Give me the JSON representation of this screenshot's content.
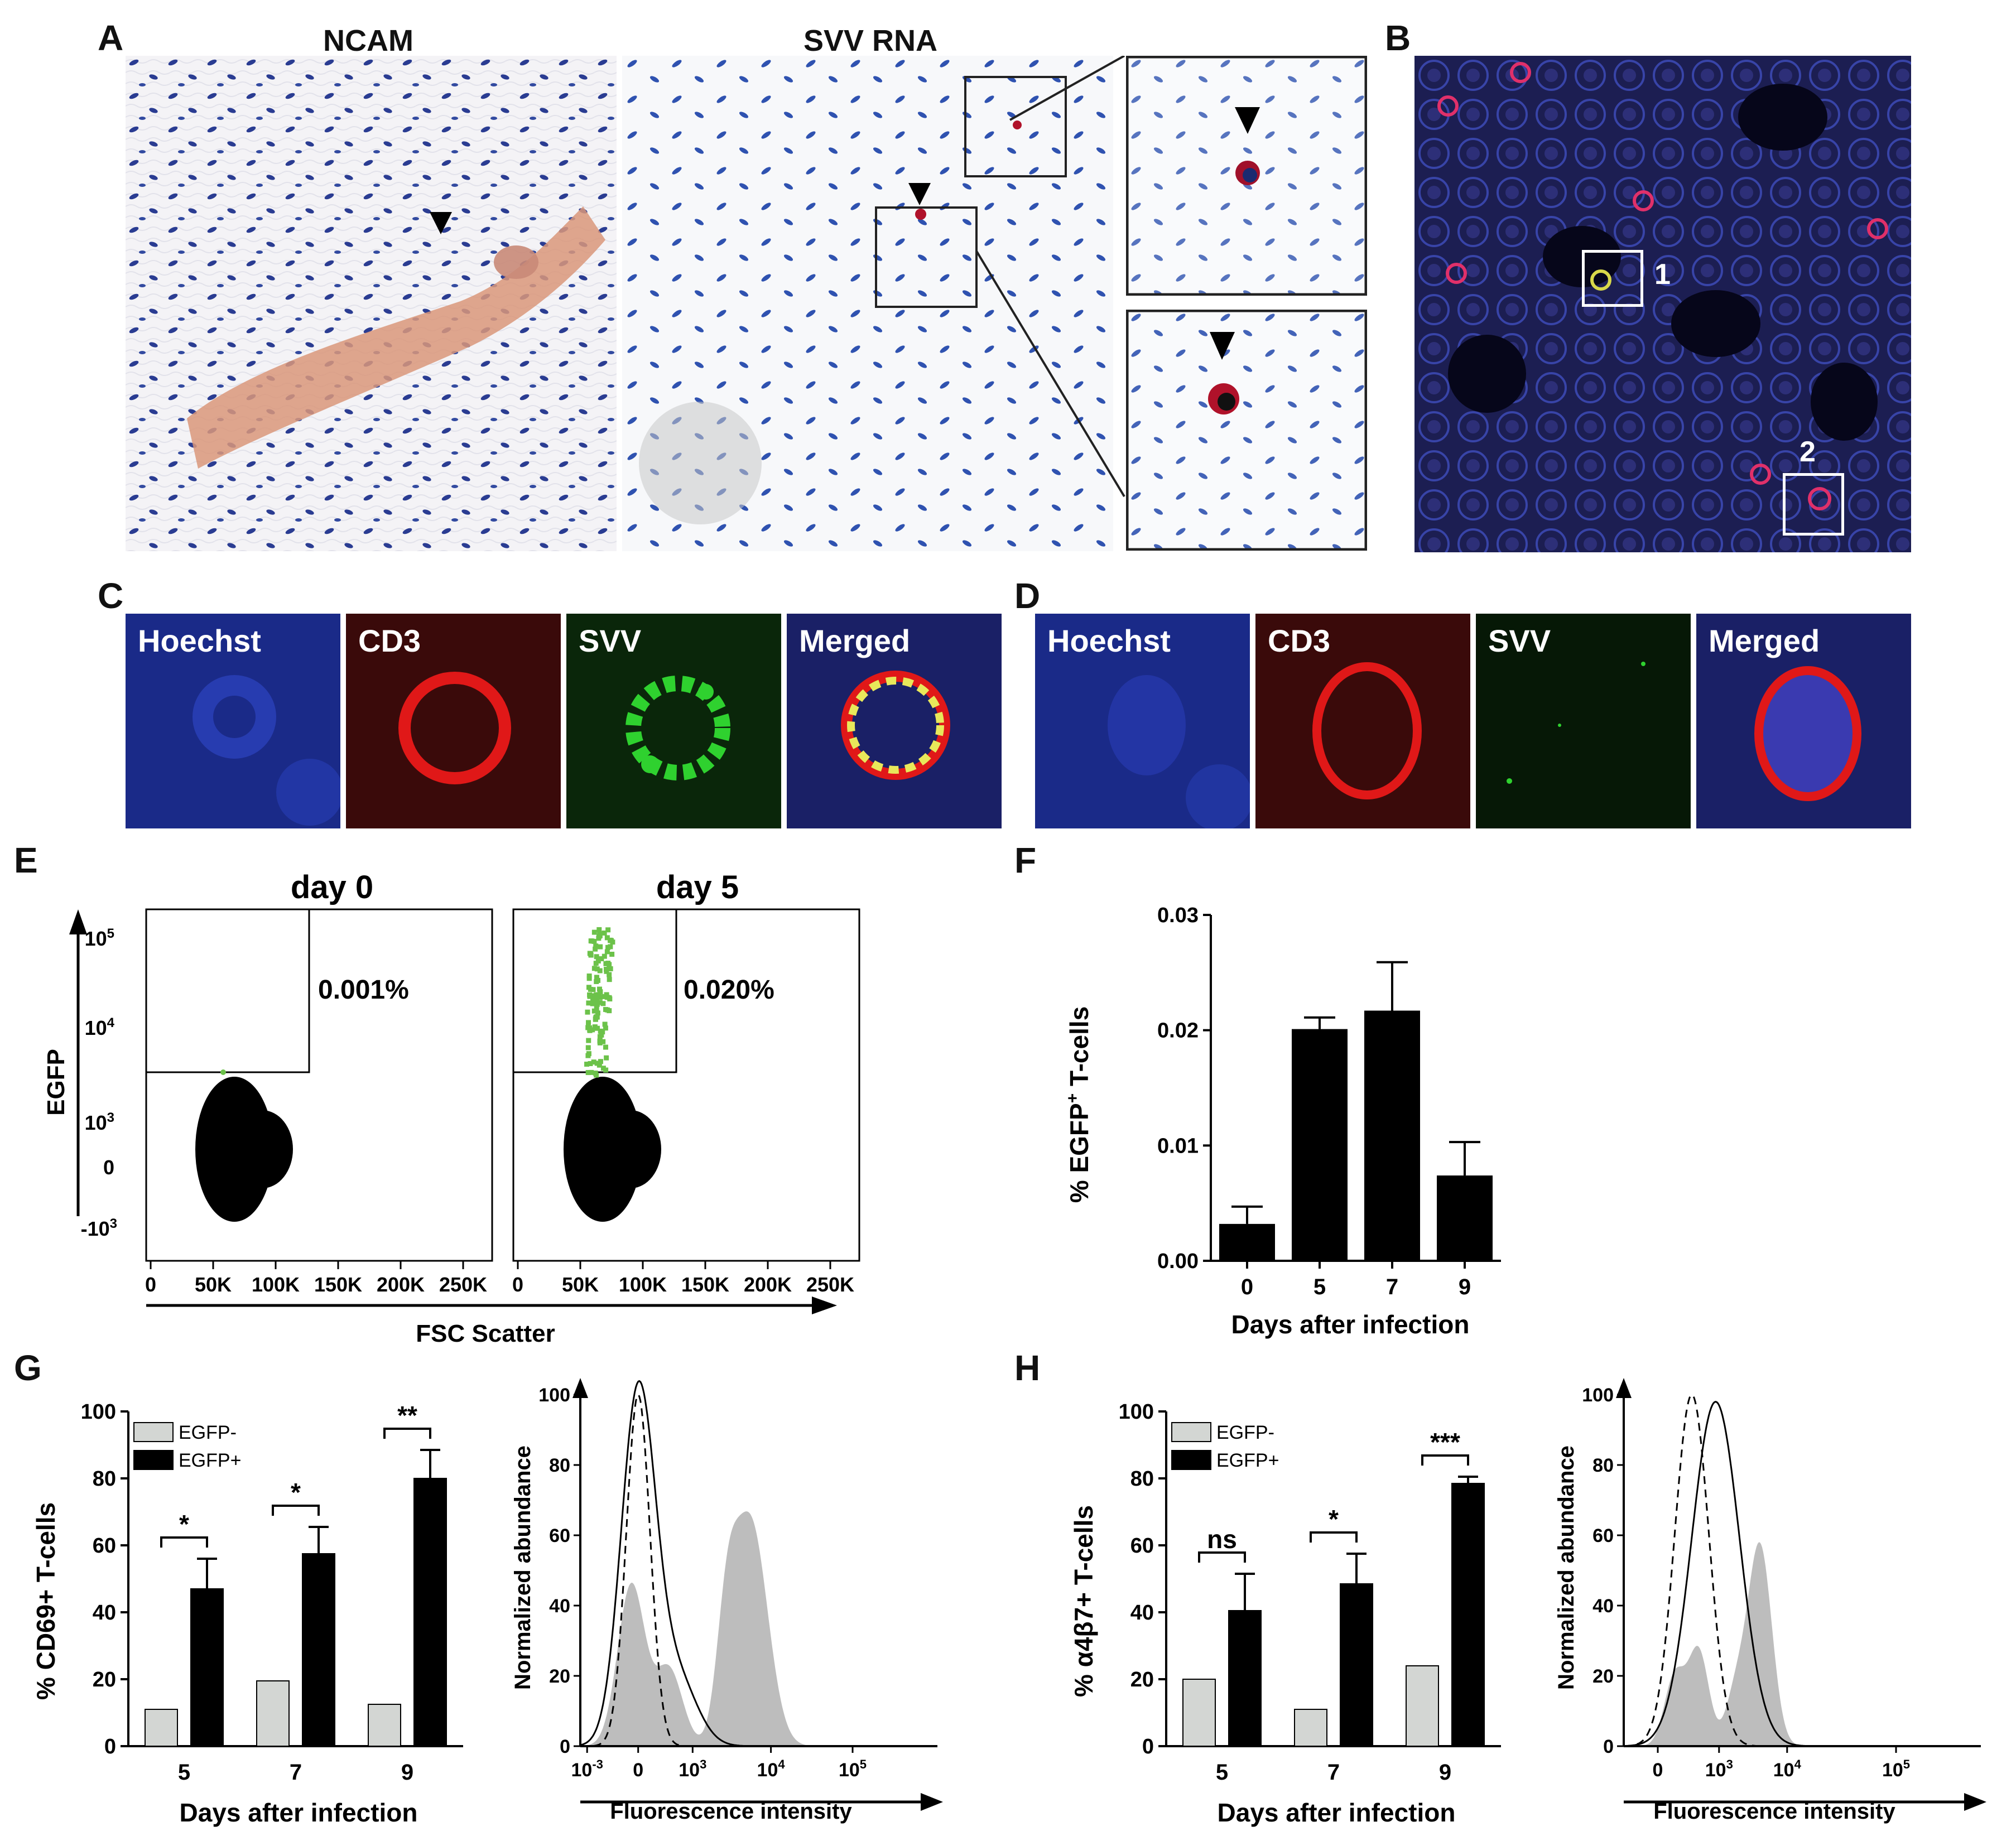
{
  "panels": {
    "A": {
      "letter": "A",
      "title_left": "NCAM",
      "title_right": "SVV RNA"
    },
    "B": {
      "letter": "B",
      "box_labels": [
        "1",
        "2"
      ]
    },
    "C": {
      "letter": "C",
      "tiles": [
        "Hoechst",
        "CD3",
        "SVV",
        "Merged"
      ]
    },
    "D": {
      "letter": "D",
      "tiles": [
        "Hoechst",
        "CD3",
        "SVV",
        "Merged"
      ]
    },
    "E": {
      "letter": "E"
    },
    "F": {
      "letter": "F"
    },
    "G": {
      "letter": "G"
    },
    "H": {
      "letter": "H"
    }
  },
  "colors": {
    "bar_negative": "#d3d6d3",
    "bar_positive": "#000000",
    "egfp_dots": "#6cc24a",
    "histogram_fill": "#bdbdbd",
    "ncam_stain": "#d9977a",
    "nuclei": "#2a3c92",
    "hoechst": "#2433a8",
    "cd3": "#e01818",
    "svv": "#2fd12f"
  },
  "chart_data": [
    {
      "id": "E-day0",
      "type": "scatter",
      "title": "day 0",
      "xlabel": "FSC Scatter",
      "ylabel": "EGFP",
      "x_ticks": [
        "0",
        "50K",
        "100K",
        "150K",
        "200K",
        "250K"
      ],
      "y_ticks": [
        "10^5",
        "10^4",
        "10^3",
        "0",
        "-10^3"
      ],
      "gate_percent": "0.001%"
    },
    {
      "id": "E-day5",
      "type": "scatter",
      "title": "day 5",
      "x_ticks": [
        "0",
        "50K",
        "100K",
        "150K",
        "200K",
        "250K"
      ],
      "gate_percent": "0.020%"
    },
    {
      "id": "F",
      "type": "bar",
      "categories": [
        "0",
        "5",
        "7",
        "9"
      ],
      "values": [
        0.0032,
        0.0201,
        0.0217,
        0.0074
      ],
      "errors": [
        0.0015,
        0.001,
        0.0042,
        0.0029
      ],
      "xlabel": "Days after infection",
      "ylabel_main": "% EGFP",
      "ylabel_sup": "+",
      "ylabel_rest": " T-cells",
      "ylim": [
        0,
        0.03
      ],
      "y_ticks": [
        "0.00",
        "0.01",
        "0.02",
        "0.03"
      ]
    },
    {
      "id": "G-bar",
      "type": "bar",
      "categories": [
        "5",
        "7",
        "9"
      ],
      "series": [
        {
          "name": "EGFP-",
          "values": [
            11,
            19.5,
            12.5
          ],
          "errors": [
            0,
            0,
            0
          ]
        },
        {
          "name": "EGFP+",
          "values": [
            47,
            57.5,
            80
          ],
          "errors": [
            9,
            8,
            8.5
          ]
        }
      ],
      "significance": [
        "*",
        "*",
        "**"
      ],
      "xlabel": "Days after infection",
      "ylabel": "% CD69+ T-cells",
      "ylim": [
        0,
        100
      ],
      "y_ticks": [
        "0",
        "20",
        "40",
        "60",
        "80",
        "100"
      ]
    },
    {
      "id": "G-hist",
      "type": "area",
      "xlabel": "Fluorescence intensity",
      "ylabel": "Normalized abundance",
      "x_ticks": [
        "10^-3",
        "0",
        "10^3",
        "10^4",
        "10^5"
      ],
      "y_ticks": [
        "0",
        "20",
        "40",
        "60",
        "80",
        "100"
      ],
      "ylim": [
        0,
        100
      ]
    },
    {
      "id": "H-bar",
      "type": "bar",
      "categories": [
        "5",
        "7",
        "9"
      ],
      "series": [
        {
          "name": "EGFP-",
          "values": [
            20,
            11,
            24
          ],
          "errors": [
            0,
            0,
            0
          ]
        },
        {
          "name": "EGFP+",
          "values": [
            40.5,
            48.5,
            78.5
          ],
          "errors": [
            11,
            9,
            2
          ]
        }
      ],
      "significance": [
        "ns",
        "*",
        "***"
      ],
      "xlabel": "Days after infection",
      "ylabel": "% α4β7+ T-cells",
      "ylim": [
        0,
        100
      ],
      "y_ticks": [
        "0",
        "20",
        "40",
        "60",
        "80",
        "100"
      ]
    },
    {
      "id": "H-hist",
      "type": "area",
      "xlabel": "Fluorescence intensity",
      "ylabel": "Normalized abundance",
      "x_ticks": [
        "0",
        "10^3",
        "10^4",
        "10^5"
      ],
      "y_ticks": [
        "0",
        "20",
        "40",
        "60",
        "80",
        "100"
      ],
      "ylim": [
        0,
        100
      ]
    }
  ]
}
